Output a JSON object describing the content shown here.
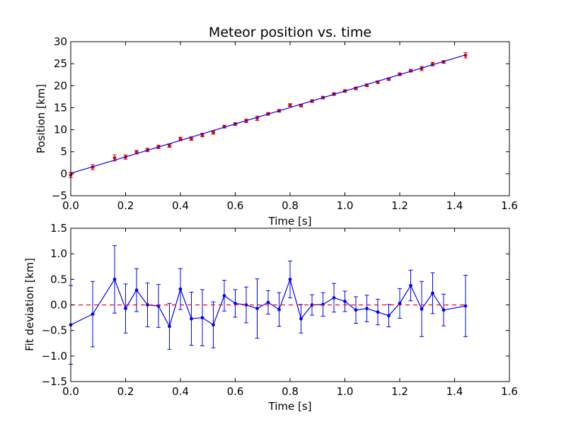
{
  "chart_data": [
    {
      "type": "line",
      "title": "Meteor position vs. time",
      "xlabel": "Time [s]",
      "ylabel": "Position [km]",
      "xlim": [
        0.0,
        1.6
      ],
      "ylim": [
        -5,
        30
      ],
      "x_ticks": [
        "0.0",
        "0.2",
        "0.4",
        "0.6",
        "0.8",
        "1.0",
        "1.2",
        "1.4",
        "1.6"
      ],
      "y_ticks": [
        "−5",
        "0",
        "5",
        "10",
        "15",
        "20",
        "25",
        "30"
      ],
      "grid": false,
      "legend": "none",
      "series": [
        {
          "kind": "errorbar-points",
          "color": "#ff0000",
          "x": [
            0.0,
            0.08,
            0.16,
            0.2,
            0.24,
            0.28,
            0.32,
            0.36,
            0.4,
            0.44,
            0.48,
            0.52,
            0.56,
            0.6,
            0.64,
            0.68,
            0.72,
            0.76,
            0.8,
            0.84,
            0.88,
            0.92,
            0.96,
            1.0,
            1.04,
            1.08,
            1.12,
            1.16,
            1.2,
            1.24,
            1.28,
            1.32,
            1.36,
            1.44
          ],
          "y": [
            -0.3,
            1.5,
            3.6,
            3.8,
            4.9,
            5.4,
            6.1,
            6.4,
            7.9,
            8.0,
            8.8,
            9.4,
            10.7,
            11.3,
            12.0,
            12.6,
            13.6,
            14.3,
            15.6,
            15.5,
            16.5,
            17.3,
            18.1,
            18.8,
            19.4,
            20.1,
            20.8,
            21.5,
            22.6,
            23.4,
            23.9,
            24.9,
            25.4,
            26.9
          ],
          "err": [
            0.6,
            0.6,
            0.7,
            0.5,
            0.4,
            0.4,
            0.4,
            0.4,
            0.4,
            0.4,
            0.4,
            0.4,
            0.3,
            0.3,
            0.4,
            0.5,
            0.3,
            0.3,
            0.3,
            0.3,
            0.3,
            0.3,
            0.3,
            0.3,
            0.3,
            0.3,
            0.3,
            0.3,
            0.3,
            0.3,
            0.5,
            0.4,
            0.3,
            0.6
          ]
        },
        {
          "kind": "fit-line",
          "color": "#0000ff",
          "x": [
            0.0,
            1.44
          ],
          "y": [
            0.1,
            27.0
          ]
        }
      ]
    },
    {
      "type": "line",
      "title": "",
      "xlabel": "Time [s]",
      "ylabel": "Fit deviation [km]",
      "xlim": [
        0.0,
        1.6
      ],
      "ylim": [
        -1.5,
        1.5
      ],
      "x_ticks": [
        "0.0",
        "0.2",
        "0.4",
        "0.6",
        "0.8",
        "1.0",
        "1.2",
        "1.4",
        "1.6"
      ],
      "y_ticks": [
        "−1.5",
        "−1.0",
        "−0.5",
        "0.0",
        "0.5",
        "1.0",
        "1.5"
      ],
      "grid": false,
      "legend": "none",
      "series": [
        {
          "kind": "errorbar-line",
          "color": "#0000ff",
          "x": [
            0.0,
            0.08,
            0.16,
            0.2,
            0.24,
            0.28,
            0.32,
            0.36,
            0.4,
            0.44,
            0.48,
            0.52,
            0.56,
            0.6,
            0.64,
            0.68,
            0.72,
            0.76,
            0.8,
            0.84,
            0.88,
            0.92,
            0.96,
            1.0,
            1.04,
            1.08,
            1.12,
            1.16,
            1.2,
            1.24,
            1.28,
            1.32,
            1.36,
            1.44
          ],
          "y": [
            -0.39,
            -0.18,
            0.5,
            -0.07,
            0.29,
            0.0,
            -0.02,
            -0.42,
            0.31,
            -0.27,
            -0.25,
            -0.39,
            0.18,
            0.03,
            0.0,
            -0.07,
            0.05,
            -0.09,
            0.5,
            -0.27,
            0.0,
            0.01,
            0.14,
            0.07,
            -0.1,
            -0.07,
            -0.14,
            -0.21,
            0.03,
            0.38,
            -0.08,
            0.23,
            -0.1,
            -0.02
          ],
          "err": [
            0.77,
            0.64,
            0.66,
            0.48,
            0.42,
            0.43,
            0.42,
            0.45,
            0.4,
            0.52,
            0.55,
            0.45,
            0.3,
            0.27,
            0.35,
            0.58,
            0.23,
            0.33,
            0.36,
            0.28,
            0.2,
            0.23,
            0.28,
            0.2,
            0.26,
            0.26,
            0.25,
            0.22,
            0.29,
            0.3,
            0.54,
            0.4,
            0.31,
            0.6
          ]
        },
        {
          "kind": "zero-line",
          "color": "#ff0000",
          "style": "dashed",
          "x": [
            0.0,
            1.44
          ],
          "y": [
            0.0,
            0.0
          ]
        }
      ]
    }
  ]
}
